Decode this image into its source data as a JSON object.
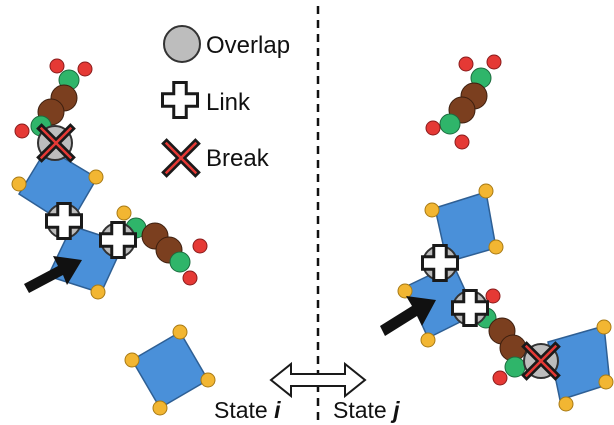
{
  "legend": {
    "overlap_label": "Overlap",
    "link_label": "Link",
    "break_label": "Break"
  },
  "states": {
    "left": {
      "prefix": "State ",
      "var": "i"
    },
    "right": {
      "prefix": "State ",
      "var": "j"
    }
  },
  "colors": {
    "square": "#4a90d9",
    "square_corner": "#f2b632",
    "chain_bead": "#7b3f1f",
    "chain_green": "#2fb56a",
    "chain_red": "#e53935",
    "overlap": "#bdbdbd",
    "break_x": "#e53935",
    "arrow": "#111111"
  },
  "icons": {
    "overlap": "overlap-circle-icon",
    "link": "link-plus-icon",
    "break": "break-x-icon",
    "transition": "double-arrow-icon",
    "pointer": "black-arrow-icon"
  }
}
